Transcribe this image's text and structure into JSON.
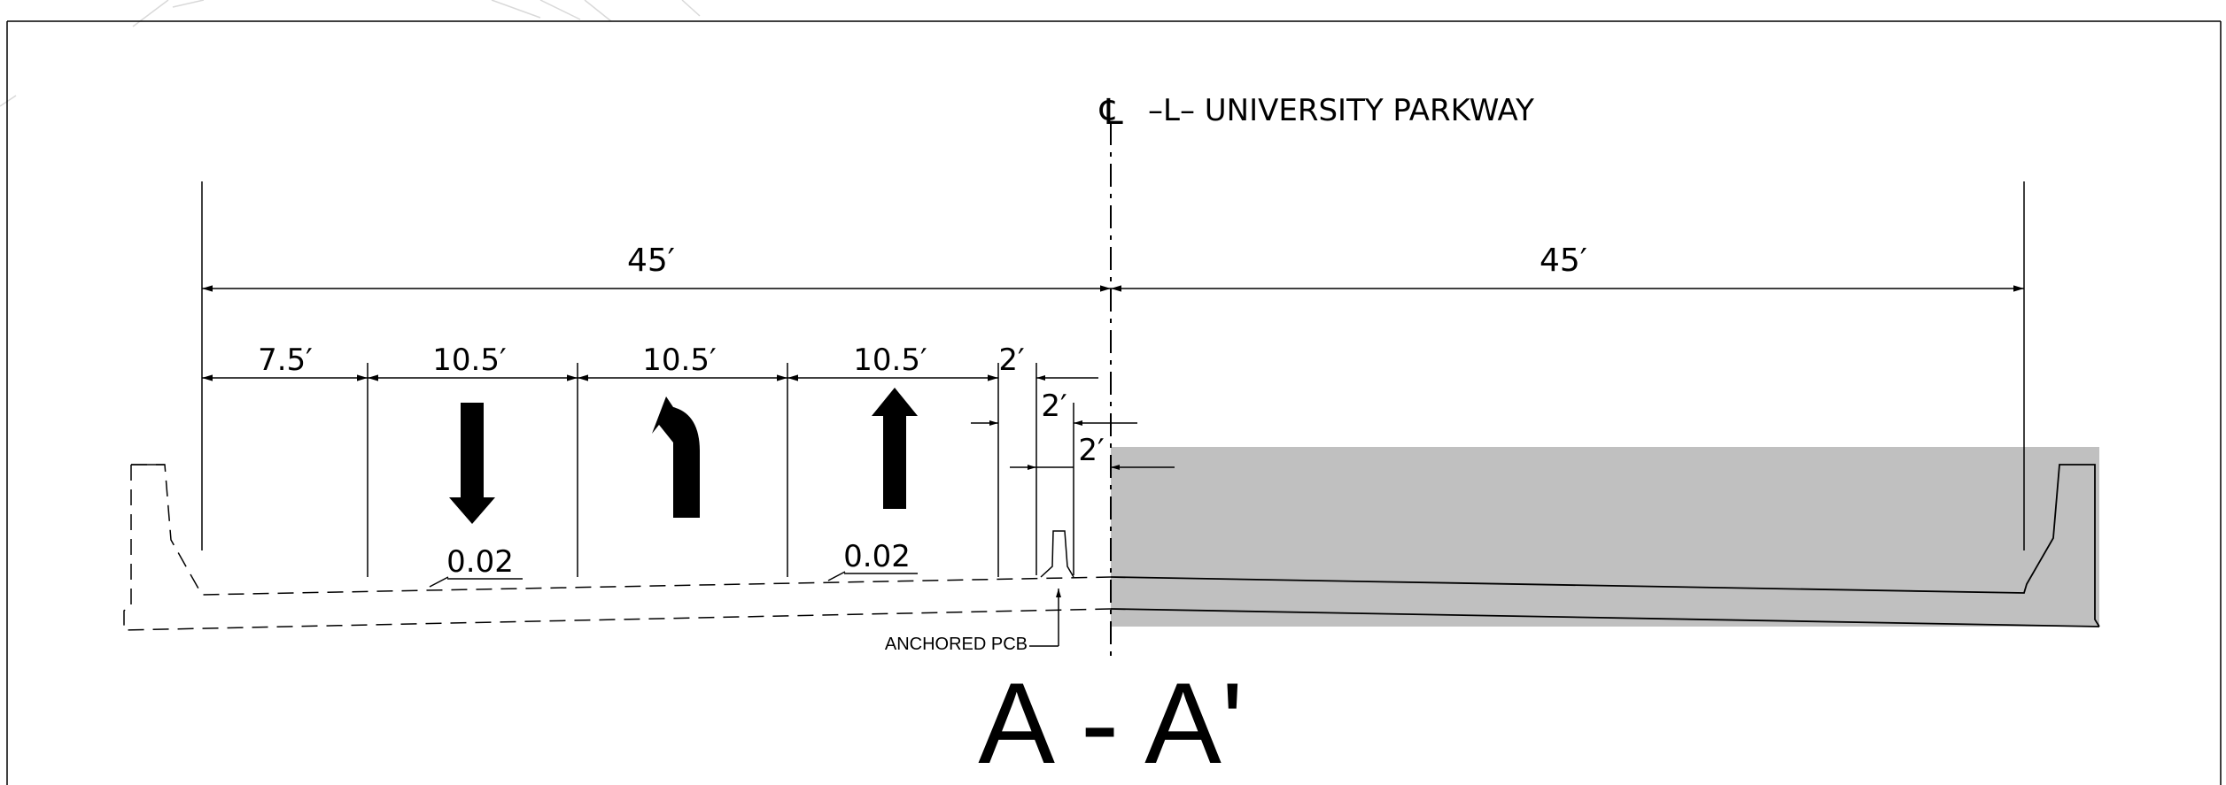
{
  "centerline": {
    "symbol": "℄",
    "label": "–L– UNIVERSITY PARKWAY"
  },
  "dimensions": {
    "left_total": "45′",
    "right_total": "45′",
    "shoulder": "7.5′",
    "lane_1": "10.5′",
    "lane_2": "10.5′",
    "lane_3": "10.5′",
    "gap_top": "2′",
    "gap_mid": "2′",
    "gap_low": "2′"
  },
  "slopes": {
    "left": "0.02",
    "right": "0.02"
  },
  "barrier_label": "ANCHORED PCB",
  "section_title": "A - A'",
  "lane_arrows": [
    {
      "direction": "down",
      "icon": "down-arrow-icon"
    },
    {
      "direction": "left-turn",
      "icon": "left-turn-arrow-icon"
    },
    {
      "direction": "up",
      "icon": "up-arrow-icon"
    }
  ],
  "colors": {
    "shaded_area": "#c0c0c0",
    "line": "#000000"
  }
}
